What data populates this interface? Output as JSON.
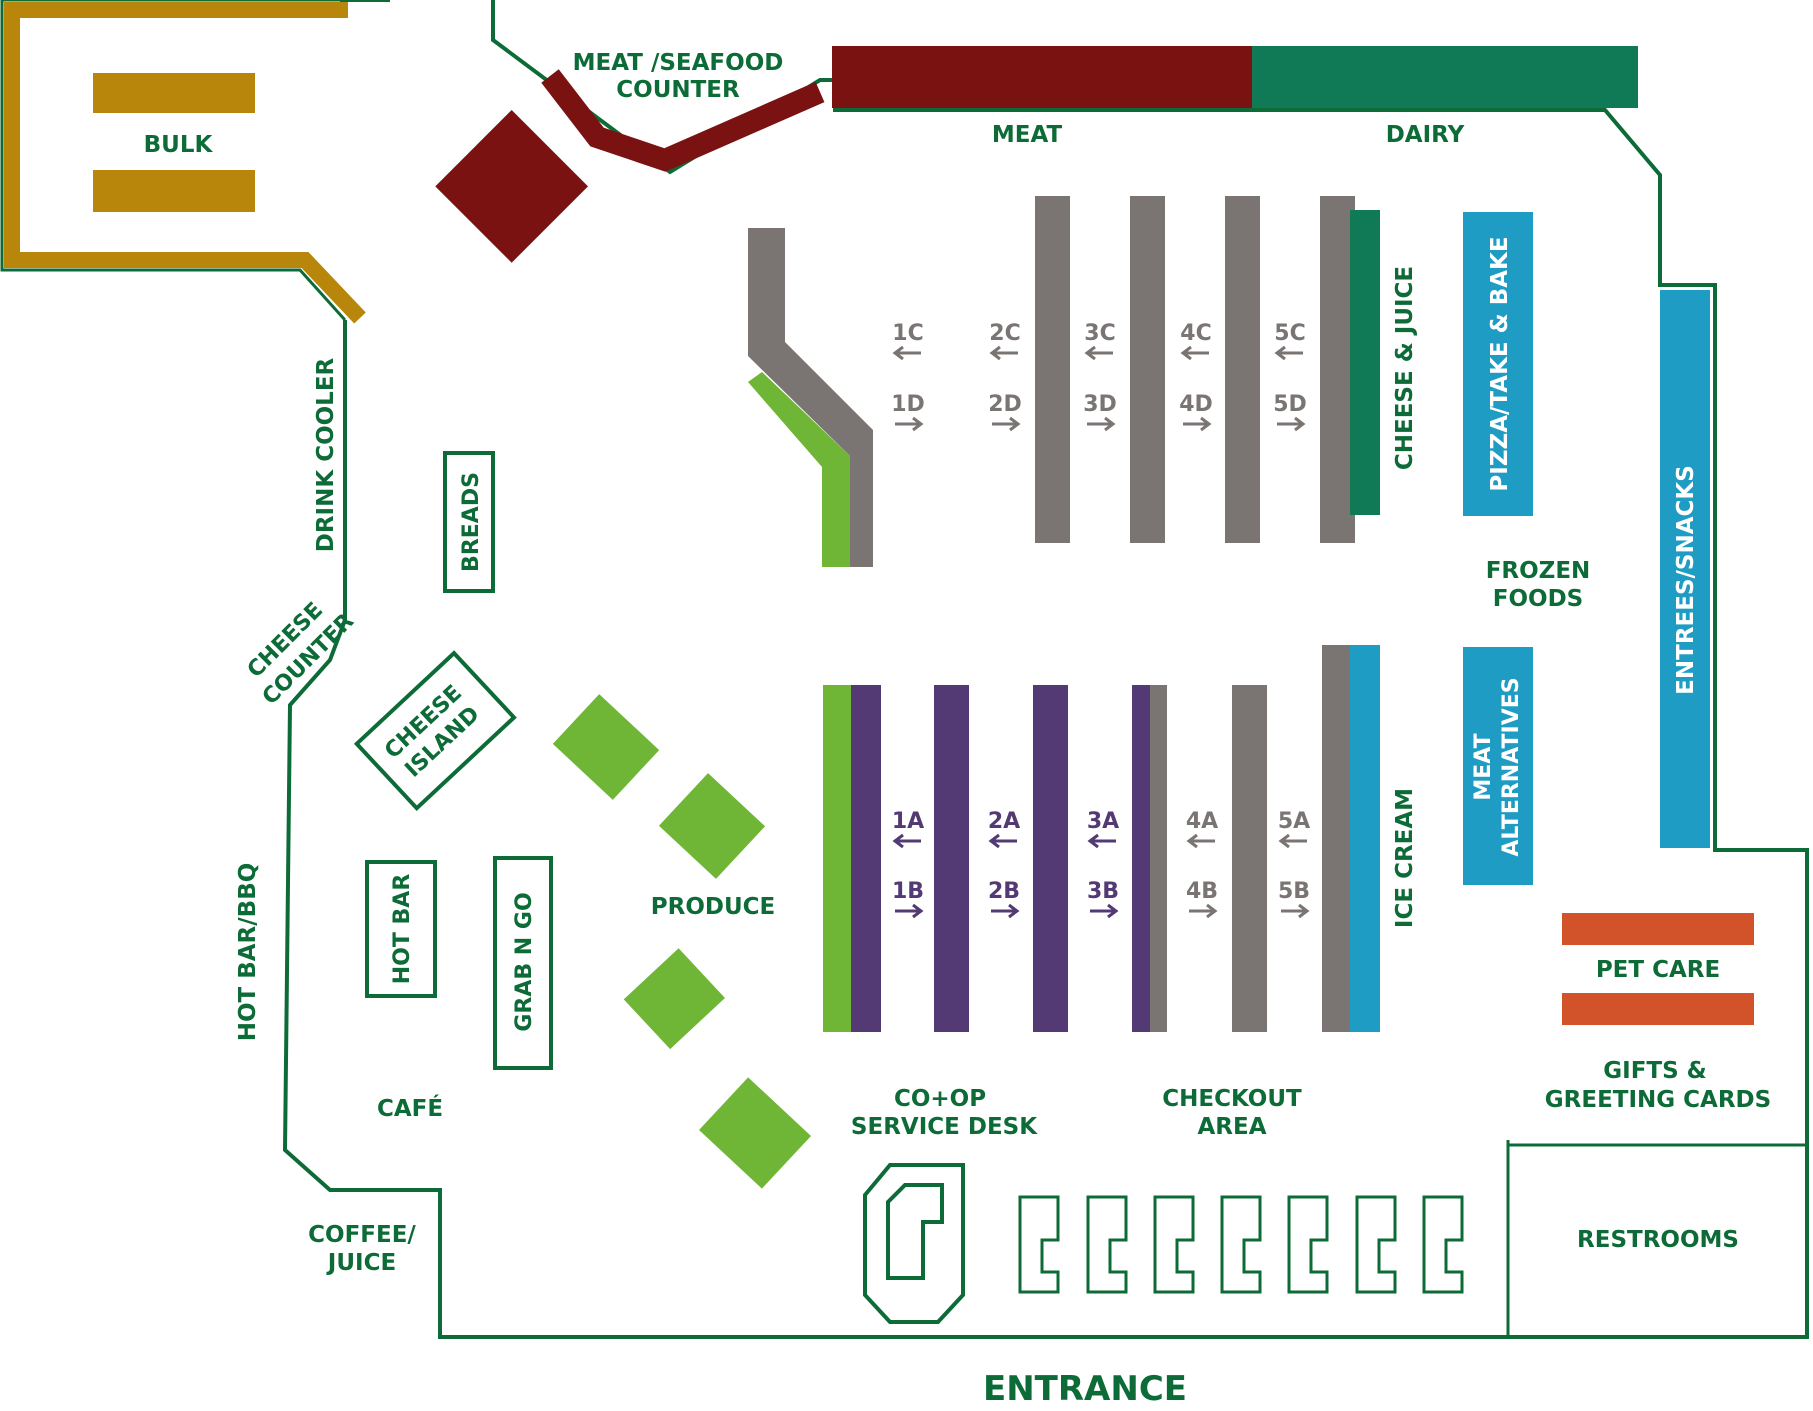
{
  "colors": {
    "outline": "#0c6b36",
    "label": "#0c6b36",
    "bulk": "#b8860b",
    "meat": "#7a1212",
    "dairy": "#0f7a55",
    "aisle_gray": "#7a7473",
    "aisle_purple": "#533a74",
    "produce_green": "#6fb536",
    "frozen_blue": "#1e9cc3",
    "pet_orange": "#d2522a",
    "purple_label": "#533a74",
    "gray_label": "#7a7473"
  },
  "sections": {
    "bulk": "BULK",
    "meat_seafood_counter_1": "MEAT /SEAFOOD",
    "meat_seafood_counter_2": "COUNTER",
    "meat": "MEAT",
    "dairy": "DAIRY",
    "cheese_juice": "CHEESE & JUICE",
    "pizza": "PIZZA/TAKE & BAKE",
    "frozen_foods_1": "FROZEN",
    "frozen_foods_2": "FOODS",
    "entrees_snacks": "ENTREES/SNACKS",
    "meat_alternatives_1": "MEAT",
    "meat_alternatives_2": "ALTERNATIVES",
    "ice_cream": "ICE CREAM",
    "pet_care": "PET CARE",
    "gifts_1": "GIFTS &",
    "gifts_2": "GREETING CARDS",
    "restrooms": "RESTROOMS",
    "checkout_1": "CHECKOUT",
    "checkout_2": "AREA",
    "service_desk_1": "CO+OP",
    "service_desk_2": "SERVICE DESK",
    "produce": "PRODUCE",
    "cafe": "CAFÉ",
    "hot_bar": "HOT BAR",
    "grab_n_go": "GRAB N GO",
    "hot_bar_bbq": "HOT BAR/BBQ",
    "coffee_juice_1": "COFFEE/",
    "coffee_juice_2": "JUICE",
    "cheese_island_1": "CHEESE",
    "cheese_island_2": "ISLAND",
    "cheese_counter_1": "CHEESE",
    "cheese_counter_2": "COUNTER",
    "breads": "BREADS",
    "drink_cooler": "DRINK COOLER",
    "entrance": "ENTRANCE"
  },
  "aisles_top": [
    {
      "upper": "1C",
      "lower": "1D"
    },
    {
      "upper": "2C",
      "lower": "2D"
    },
    {
      "upper": "3C",
      "lower": "3D"
    },
    {
      "upper": "4C",
      "lower": "4D"
    },
    {
      "upper": "5C",
      "lower": "5D"
    }
  ],
  "aisles_bottom": [
    {
      "upper": "1A",
      "lower": "1B",
      "tone": "purple"
    },
    {
      "upper": "2A",
      "lower": "2B",
      "tone": "purple"
    },
    {
      "upper": "3A",
      "lower": "3B",
      "tone": "purple"
    },
    {
      "upper": "4A",
      "lower": "4B",
      "tone": "gray"
    },
    {
      "upper": "5A",
      "lower": "5B",
      "tone": "gray"
    }
  ]
}
